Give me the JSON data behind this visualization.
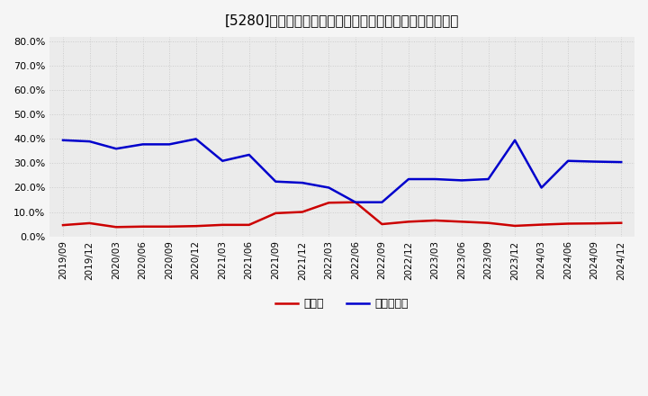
{
  "title": "[5280]　現高金、有利子負債の総資産に対する比率の推移",
  "x_labels": [
    "2019/09",
    "2019/12",
    "2020/03",
    "2020/06",
    "2020/09",
    "2020/12",
    "2021/03",
    "2021/06",
    "2021/09",
    "2021/12",
    "2022/03",
    "2022/06",
    "2022/09",
    "2022/12",
    "2023/03",
    "2023/06",
    "2023/09",
    "2023/12",
    "2024/03",
    "2024/06",
    "2024/09",
    "2024/12"
  ],
  "cash_values": [
    0.046,
    0.054,
    0.038,
    0.04,
    0.04,
    0.042,
    0.047,
    0.047,
    0.095,
    0.1,
    0.138,
    0.14,
    0.05,
    0.06,
    0.065,
    0.06,
    0.055,
    0.043,
    0.048,
    0.052,
    0.053,
    0.055
  ],
  "debt_values": [
    0.395,
    0.39,
    0.36,
    0.378,
    0.378,
    0.4,
    0.31,
    0.335,
    0.225,
    0.22,
    0.2,
    0.14,
    0.14,
    0.235,
    0.235,
    0.23,
    0.235,
    0.395,
    0.2,
    0.31,
    0.307,
    0.305
  ],
  "cash_color": "#cc0000",
  "debt_color": "#0000cc",
  "background_color": "#f5f5f5",
  "plot_bg_color": "#ebebeb",
  "grid_color": "#cccccc",
  "ylim": [
    0.0,
    0.82
  ],
  "yticks": [
    0.0,
    0.1,
    0.2,
    0.3,
    0.4,
    0.5,
    0.6,
    0.7,
    0.8
  ],
  "linewidth": 1.8
}
